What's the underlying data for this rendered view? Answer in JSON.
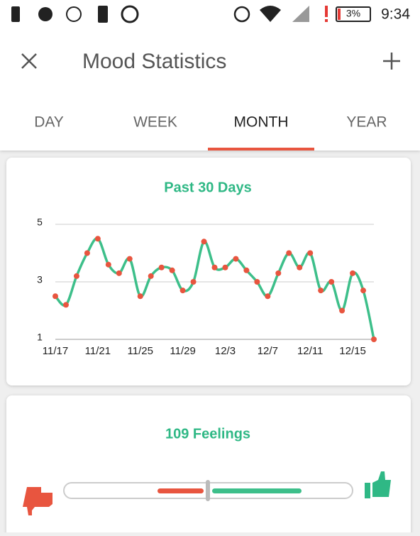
{
  "status_bar": {
    "battery": "3%",
    "time": "9:34"
  },
  "header": {
    "title": "Mood Statistics"
  },
  "tabs": [
    "DAY",
    "WEEK",
    "MONTH",
    "YEAR"
  ],
  "active_tab": "MONTH",
  "chart_data": {
    "type": "line",
    "title": "Past 30 Days",
    "categories": [
      "11/17",
      null,
      null,
      null,
      "11/21",
      null,
      null,
      null,
      "11/25",
      null,
      null,
      null,
      "11/29",
      null,
      null,
      null,
      "12/3",
      null,
      null,
      null,
      "12/7",
      null,
      null,
      null,
      "12/11",
      null,
      null,
      null,
      "12/15",
      null,
      null
    ],
    "series": [
      {
        "name": null,
        "color": "#3dbf8a",
        "marker_color": "#e8553f",
        "values": [
          2.5,
          2.2,
          3.2,
          4.0,
          4.5,
          3.6,
          3.3,
          3.8,
          2.5,
          3.2,
          3.5,
          3.4,
          2.7,
          3.0,
          4.4,
          3.5,
          3.5,
          3.8,
          3.4,
          3.0,
          2.5,
          3.3,
          4.0,
          3.5,
          4.0,
          2.7,
          3.0,
          2.0,
          3.3,
          2.7,
          1.0
        ]
      }
    ],
    "ylim": [
      1,
      5
    ],
    "yticks": [
      1,
      3,
      5
    ],
    "grid": true
  },
  "feelings": {
    "title": "109 Feelings"
  }
}
